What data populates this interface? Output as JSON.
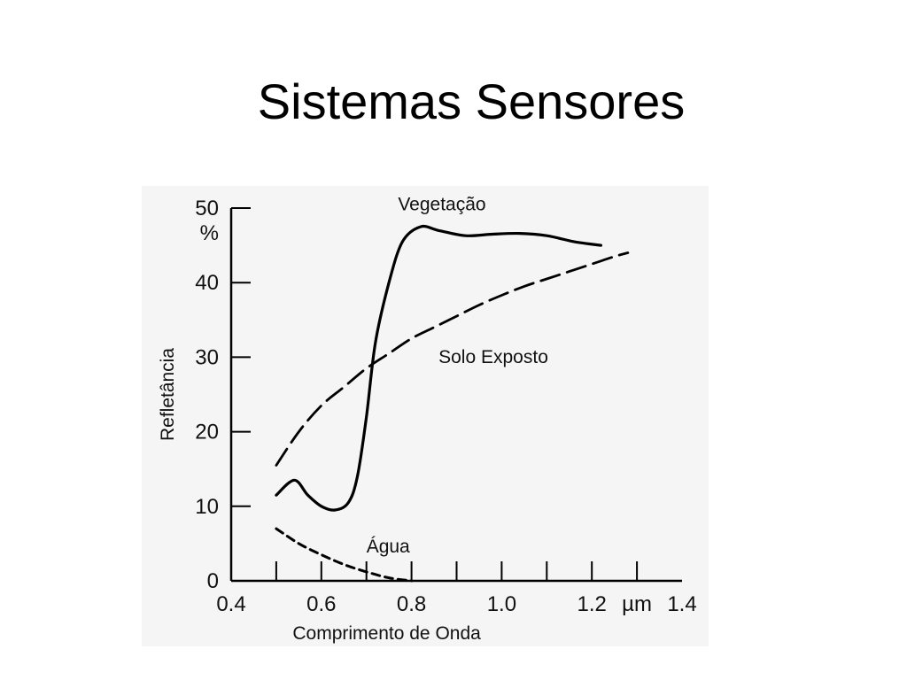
{
  "slide": {
    "title": "Sistemas Sensores"
  },
  "chart_data": {
    "type": "line",
    "xlabel": "Comprimento de Onda",
    "ylabel": "Refletância",
    "x_unit": "µm",
    "y_unit": "%",
    "xlim": [
      0.4,
      1.4
    ],
    "ylim": [
      0,
      50
    ],
    "x_ticks": [
      "0.4",
      "0.6",
      "0.8",
      "1.0",
      "1.2",
      "1.4"
    ],
    "y_ticks": [
      "0",
      "10",
      "20",
      "30",
      "40",
      "50"
    ],
    "grid": false,
    "colors": {
      "line": "#000000",
      "background": "#f5f5f5"
    },
    "series": [
      {
        "name": "Vegetação",
        "style": "solid",
        "points": [
          [
            0.5,
            11.5
          ],
          [
            0.54,
            13.5
          ],
          [
            0.57,
            11.5
          ],
          [
            0.6,
            10.0
          ],
          [
            0.63,
            9.5
          ],
          [
            0.66,
            10.5
          ],
          [
            0.68,
            14.0
          ],
          [
            0.7,
            22.0
          ],
          [
            0.72,
            32.0
          ],
          [
            0.75,
            40.0
          ],
          [
            0.78,
            45.5
          ],
          [
            0.82,
            47.5
          ],
          [
            0.86,
            47.0
          ],
          [
            0.92,
            46.3
          ],
          [
            0.98,
            46.5
          ],
          [
            1.04,
            46.6
          ],
          [
            1.1,
            46.3
          ],
          [
            1.16,
            45.5
          ],
          [
            1.22,
            45.0
          ]
        ]
      },
      {
        "name": "Solo Exposto",
        "style": "dashed",
        "points": [
          [
            0.5,
            15.5
          ],
          [
            0.55,
            20.0
          ],
          [
            0.6,
            23.5
          ],
          [
            0.65,
            26.0
          ],
          [
            0.7,
            28.5
          ],
          [
            0.75,
            30.5
          ],
          [
            0.8,
            32.5
          ],
          [
            0.85,
            34.0
          ],
          [
            0.9,
            35.5
          ],
          [
            0.95,
            37.0
          ],
          [
            1.0,
            38.3
          ],
          [
            1.05,
            39.5
          ],
          [
            1.1,
            40.5
          ],
          [
            1.15,
            41.5
          ],
          [
            1.2,
            42.5
          ],
          [
            1.25,
            43.5
          ],
          [
            1.28,
            44.0
          ]
        ]
      },
      {
        "name": "Água",
        "style": "dotted-dashed",
        "points": [
          [
            0.5,
            7.0
          ],
          [
            0.55,
            5.0
          ],
          [
            0.6,
            3.5
          ],
          [
            0.65,
            2.2
          ],
          [
            0.7,
            1.2
          ],
          [
            0.75,
            0.4
          ],
          [
            0.8,
            0.0
          ]
        ]
      }
    ]
  }
}
